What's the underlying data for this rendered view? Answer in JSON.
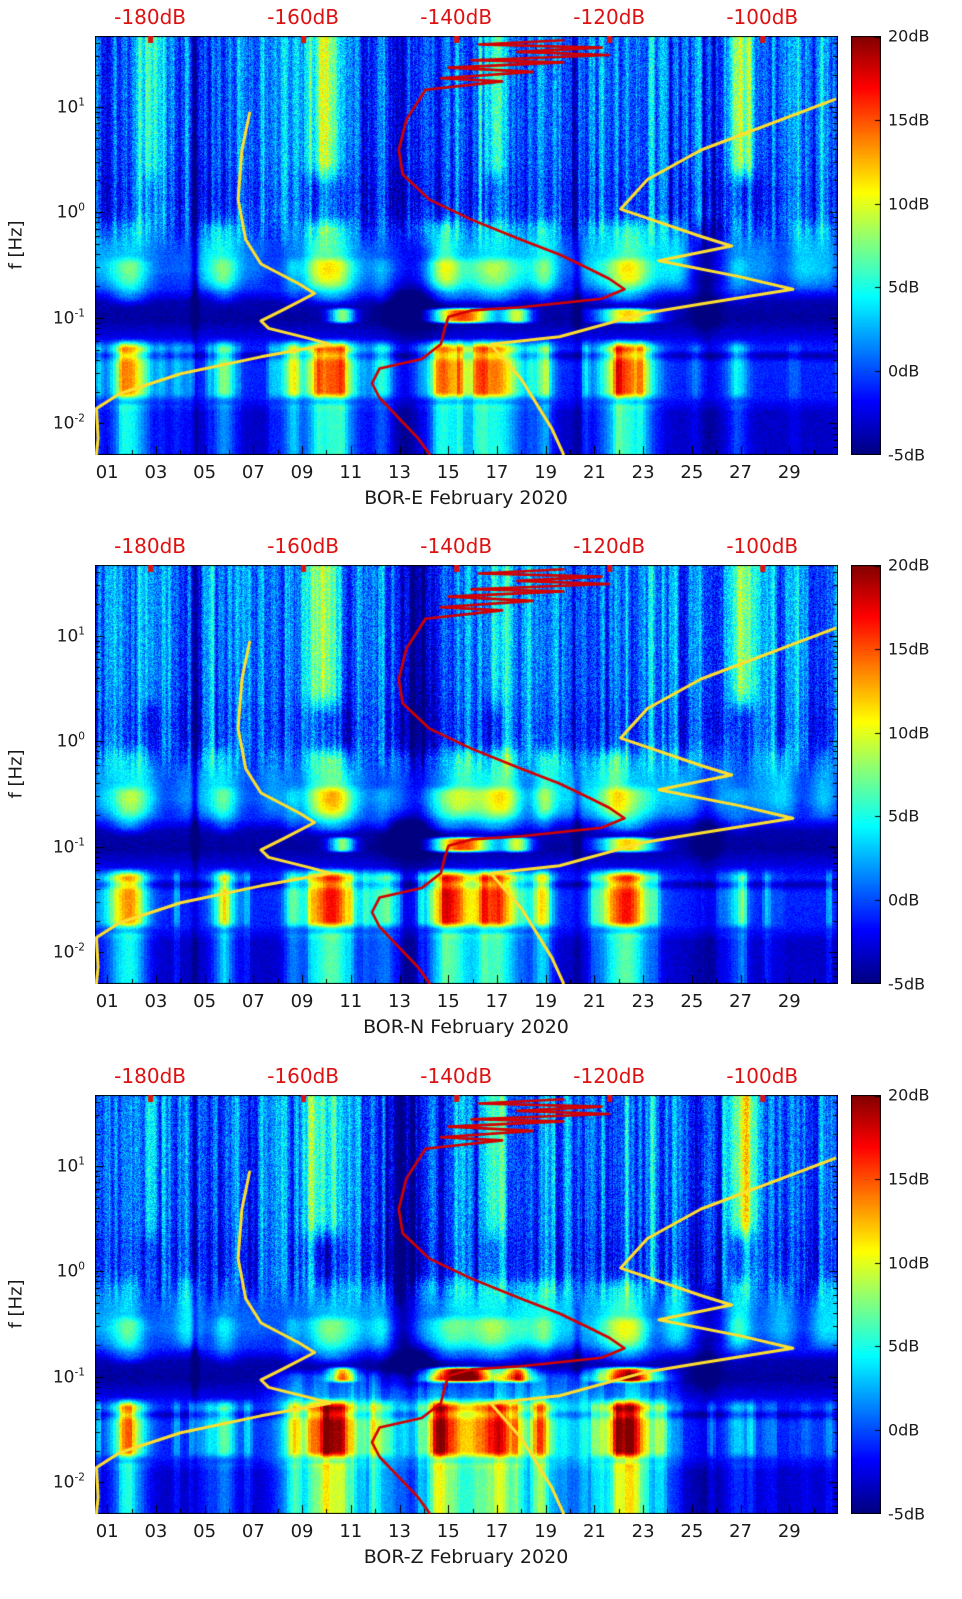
{
  "colors": {
    "axis_text": "#1a1a1a",
    "top_axis_red": "#dd1111",
    "median_curve_red": "#d40000",
    "noise_model_yellow": "#ffdf2e",
    "background": "#ffffff"
  },
  "chart_data": {
    "type": "heatmap",
    "description": "Three stacked seismic spectrogram panels (power spectral density in dB, jet colormap) for station BOR components E, N and Z during February 2020. A red median-PSD curve and two yellow Peterson-style noise-model curves are overlaid, read against the red dB axis along the top of each panel.",
    "panels": [
      {
        "component": "BOR-E",
        "xtitle": "BOR-E February 2020",
        "ylabel": "f [Hz]"
      },
      {
        "component": "BOR-N",
        "xtitle": "BOR-N February 2020",
        "ylabel": "f [Hz]"
      },
      {
        "component": "BOR-Z",
        "xtitle": "BOR-Z February 2020",
        "ylabel": "f [Hz]"
      }
    ],
    "x_axis": {
      "tick_labels": [
        "01",
        "03",
        "05",
        "07",
        "09",
        "11",
        "13",
        "15",
        "17",
        "19",
        "21",
        "23",
        "25",
        "27",
        "29"
      ],
      "tick_days": [
        1,
        3,
        5,
        7,
        9,
        11,
        13,
        15,
        17,
        19,
        21,
        23,
        25,
        27,
        29
      ],
      "day_range": [
        0.5,
        31
      ]
    },
    "y_axis": {
      "label": "f [Hz]",
      "scale": "log",
      "tick_labels": [
        "10^1",
        "10^0",
        "10^-1",
        "10^-2"
      ],
      "tick_exponents": [
        1,
        0,
        -1,
        -2
      ],
      "log10_range": [
        -2.3,
        1.67
      ]
    },
    "top_axis": {
      "tick_labels": [
        "-180dB",
        "-160dB",
        "-140dB",
        "-120dB",
        "-100dB"
      ],
      "tick_values": [
        -180,
        -160,
        -140,
        -120,
        -100
      ],
      "db_range": [
        -187.2,
        -90.1
      ]
    },
    "colorbar": {
      "tick_labels": [
        "20dB",
        "15dB",
        "10dB",
        "5dB",
        "0dB",
        "-5dB"
      ],
      "tick_values": [
        20,
        15,
        10,
        5,
        0,
        -5
      ],
      "range": [
        -5,
        20
      ],
      "colormap": "jet"
    },
    "high_noise_event_days": [
      2.0,
      5.8,
      10.2,
      14.9,
      16.9,
      22.3
    ],
    "overlays": {
      "red_median_psd": [
        [
          -126,
          1.63
        ],
        [
          -137,
          1.59
        ],
        [
          -121,
          1.56
        ],
        [
          -132,
          1.52
        ],
        [
          -120,
          1.49
        ],
        [
          -138,
          1.44
        ],
        [
          -126,
          1.42
        ],
        [
          -141,
          1.37
        ],
        [
          -130,
          1.33
        ],
        [
          -142,
          1.27
        ],
        [
          -134,
          1.24
        ],
        [
          -144,
          1.16
        ],
        [
          -146.5,
          0.88
        ],
        [
          -147.5,
          0.59
        ],
        [
          -147,
          0.36
        ],
        [
          -143.5,
          0.12
        ],
        [
          -138,
          -0.07
        ],
        [
          -131.5,
          -0.26
        ],
        [
          -126.5,
          -0.4
        ],
        [
          -122.5,
          -0.54
        ],
        [
          -120,
          -0.63
        ],
        [
          -118,
          -0.73
        ],
        [
          -121,
          -0.82
        ],
        [
          -131.5,
          -0.9
        ],
        [
          -138,
          -0.93
        ],
        [
          -141,
          -0.99
        ],
        [
          -141.5,
          -1.1
        ],
        [
          -142,
          -1.25
        ],
        [
          -144.5,
          -1.39
        ],
        [
          -150,
          -1.48
        ],
        [
          -151,
          -1.62
        ],
        [
          -150,
          -1.76
        ],
        [
          -147.5,
          -1.95
        ],
        [
          -145,
          -2.14
        ],
        [
          -143.5,
          -2.29
        ]
      ],
      "yellow_low_noise_model": [
        [
          -167,
          0.94
        ],
        [
          -168,
          0.59
        ],
        [
          -168.5,
          0.12
        ],
        [
          -167.5,
          -0.26
        ],
        [
          -165.5,
          -0.49
        ],
        [
          -160.5,
          -0.68
        ],
        [
          -158.5,
          -0.77
        ],
        [
          -162.5,
          -0.92
        ],
        [
          -165.5,
          -1.03
        ],
        [
          -164.5,
          -1.1
        ],
        [
          -159,
          -1.2
        ],
        [
          -156.5,
          -1.25
        ],
        [
          -165.5,
          -1.37
        ],
        [
          -176,
          -1.53
        ],
        [
          -184,
          -1.72
        ],
        [
          -187,
          -1.86
        ],
        [
          -186.8,
          -2.14
        ],
        [
          -187,
          -2.29
        ]
      ],
      "yellow_high_noise_model": [
        [
          -90.5,
          1.07
        ],
        [
          -108,
          0.59
        ],
        [
          -115,
          0.31
        ],
        [
          -118.5,
          0.03
        ],
        [
          -108,
          -0.23
        ],
        [
          -104,
          -0.32
        ],
        [
          -113.5,
          -0.46
        ],
        [
          -103,
          -0.61
        ],
        [
          -96,
          -0.73
        ],
        [
          -108,
          -0.87
        ],
        [
          -115.5,
          -0.96
        ],
        [
          -126.5,
          -1.18
        ],
        [
          -135.5,
          -1.25
        ],
        [
          -131.5,
          -1.58
        ],
        [
          -127.5,
          -2.05
        ],
        [
          -126,
          -2.29
        ]
      ]
    }
  }
}
